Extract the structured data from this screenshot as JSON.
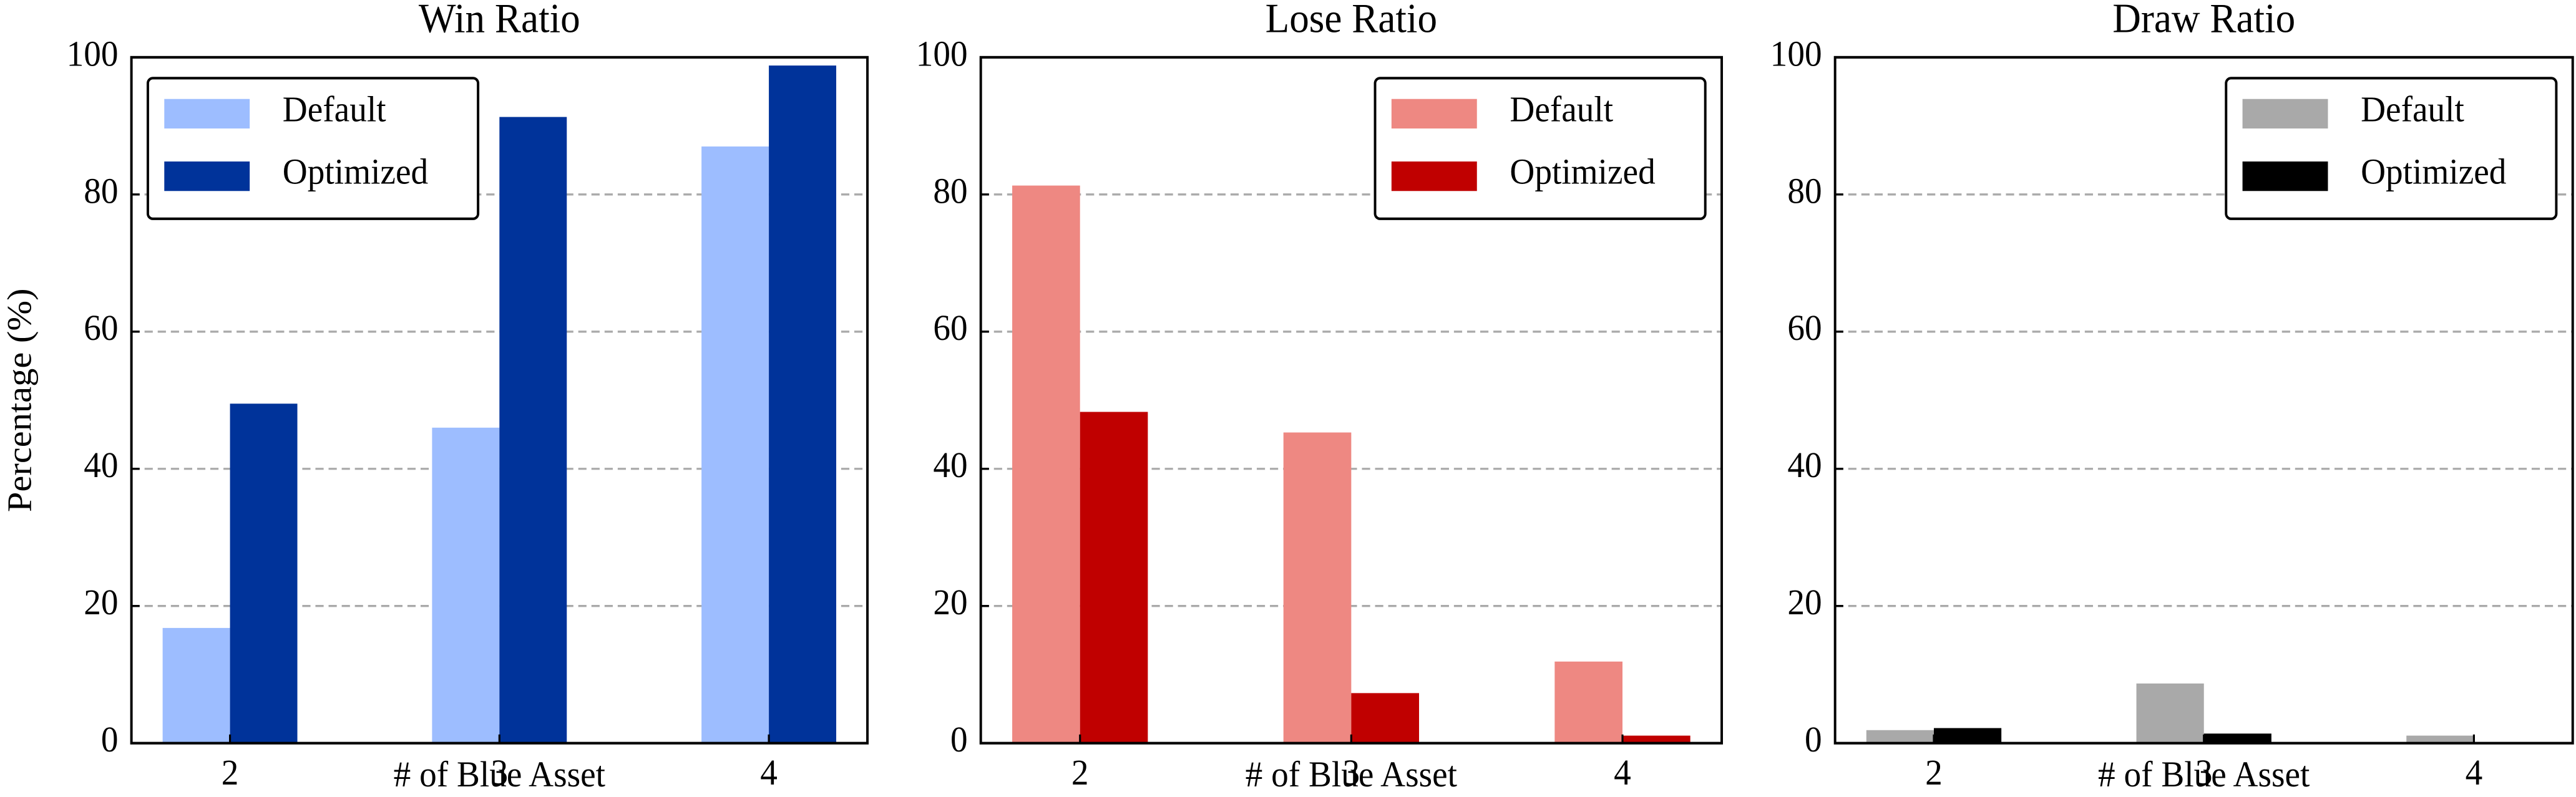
{
  "chart_data": [
    {
      "type": "bar",
      "title": "Win Ratio",
      "xlabel": "# of Blue Asset",
      "ylabel": "Percentage (%)",
      "categories": [
        "2",
        "3",
        "4"
      ],
      "series": [
        {
          "name": "Default",
          "color": "#9dbdff",
          "values": [
            16.8,
            46,
            87
          ]
        },
        {
          "name": "Optimized",
          "color": "#00339a",
          "values": [
            49.5,
            91.3,
            98.8
          ]
        }
      ],
      "ylim": [
        0,
        100
      ],
      "yticks": [
        0,
        20,
        40,
        60,
        80,
        100
      ],
      "grid": true,
      "legend": "upper left"
    },
    {
      "type": "bar",
      "title": "Lose Ratio",
      "xlabel": "# of Blue Asset",
      "categories": [
        "2",
        "3",
        "4"
      ],
      "series": [
        {
          "name": "Default",
          "color": "#ee8882",
          "values": [
            81.3,
            45.3,
            11.9
          ]
        },
        {
          "name": "Optimized",
          "color": "#c00000",
          "values": [
            48.3,
            7.3,
            1.1
          ]
        }
      ],
      "ylim": [
        0,
        100
      ],
      "yticks": [
        0,
        20,
        40,
        60,
        80,
        100
      ],
      "grid": true,
      "legend": "upper right"
    },
    {
      "type": "bar",
      "title": "Draw Ratio",
      "xlabel": "# of Blue Asset",
      "categories": [
        "2",
        "3",
        "4"
      ],
      "series": [
        {
          "name": "Default",
          "color": "#a9a9a9",
          "values": [
            1.9,
            8.7,
            1.1
          ]
        },
        {
          "name": "Optimized",
          "color": "#000000",
          "values": [
            2.2,
            1.4,
            0.1
          ]
        }
      ],
      "ylim": [
        0,
        100
      ],
      "yticks": [
        0,
        20,
        40,
        60,
        80,
        100
      ],
      "grid": true,
      "legend": "upper right"
    }
  ]
}
